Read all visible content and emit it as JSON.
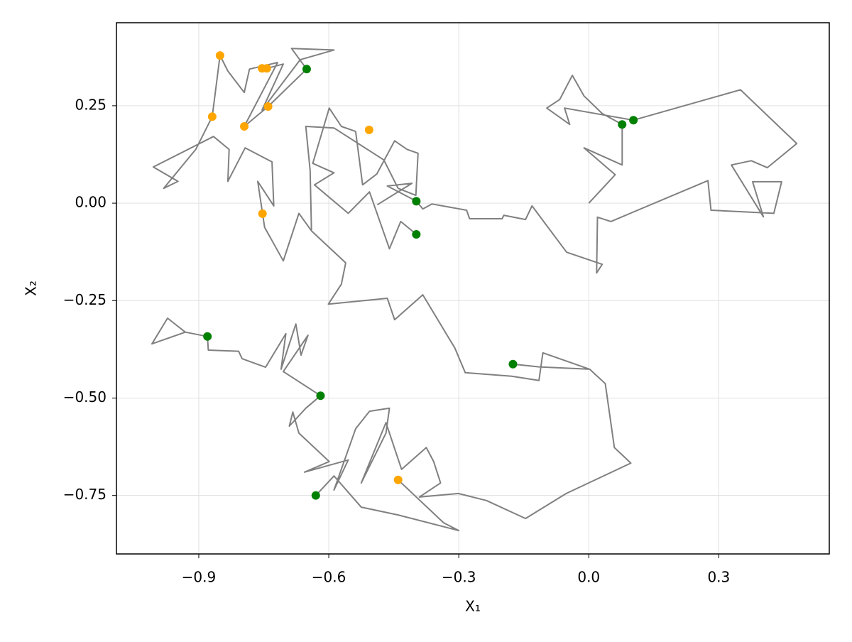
{
  "chart_data": {
    "type": "line",
    "xlabel": "X₁",
    "ylabel": "X₂",
    "xlim": [
      -1.09,
      0.555
    ],
    "ylim": [
      -0.9,
      0.463
    ],
    "xticks": [
      {
        "value": -0.9,
        "label": "−0.9"
      },
      {
        "value": -0.6,
        "label": "−0.6"
      },
      {
        "value": -0.3,
        "label": "−0.3"
      },
      {
        "value": 0,
        "label": "0.0"
      },
      0.3
    ],
    "yticks": [
      {
        "value": -0.75,
        "label": "−0.75"
      },
      {
        "value": -0.5,
        "label": "−0.50"
      },
      {
        "value": -0.25,
        "label": "−0.25"
      },
      {
        "value": 0,
        "label": "0.00"
      },
      0.25
    ],
    "grid": true,
    "series": [
      {
        "type": "line",
        "color": "#808080",
        "x": [
          0,
          0.061,
          -0.011,
          0.077,
          0.077,
          0.031,
          -0.011,
          -0.038,
          -0.067,
          -0.097,
          -0.044,
          -0.056,
          0.103,
          0.35,
          0.48,
          0.412,
          0.375,
          0.329,
          0.403,
          0.378,
          0.445,
          0.427,
          0.282,
          0.275,
          0.051,
          0.02,
          0.018,
          0.031,
          -0.051,
          -0.131,
          -0.146,
          -0.196,
          -0.2,
          -0.275,
          -0.282,
          -0.362,
          -0.383,
          -0.398,
          -0.465,
          -0.408,
          -0.488,
          null,
          -0.398,
          -0.434,
          -0.46,
          -0.506,
          -0.555,
          -0.633,
          -0.588,
          -0.637,
          -0.599,
          -0.571,
          -0.538,
          -0.522,
          -0.489,
          -0.448,
          -0.419,
          -0.394,
          -0.399,
          -0.44,
          -0.473,
          -0.588,
          -0.653,
          -0.643,
          -0.64,
          -0.669,
          -0.705,
          -0.748,
          -0.764,
          -0.727,
          -0.731,
          -0.793,
          -0.833,
          -0.83,
          -0.866,
          -1.005,
          -0.948,
          -0.981,
          -0.907,
          -0.869,
          -0.851,
          -0.833,
          -0.795,
          -0.783,
          -0.718,
          -0.795,
          -0.74,
          -0.651,
          -0.686,
          -0.588,
          -0.666,
          -0.754,
          -0.705,
          -0.743,
          -0.754,
          null,
          -0.64,
          -0.561,
          -0.571,
          -0.601,
          -0.465,
          -0.448,
          -0.383,
          -0.309,
          -0.285,
          -0.178,
          -0.115,
          -0.106,
          0.002,
          -0.115,
          -0.175,
          null,
          0.002,
          0.038,
          0.059,
          0.097,
          -0.052,
          -0.146,
          -0.236,
          -0.301,
          -0.391,
          -0.342,
          -0.358,
          -0.375,
          -0.432,
          -0.468,
          -0.525,
          -0.468,
          -0.46,
          -0.506,
          -0.538,
          -0.588,
          -0.555,
          -0.656,
          -0.599,
          -0.669,
          -0.683,
          -0.691,
          -0.653,
          -0.619,
          -0.705,
          -0.648,
          -0.664,
          -0.676,
          -0.71,
          -0.699,
          -0.746,
          -0.8,
          -0.808,
          -0.878,
          -0.88,
          -0.931,
          -0.972,
          -1.008,
          -0.931,
          null,
          -0.63,
          -0.588,
          -0.525,
          -0.44,
          -0.3,
          -0.335,
          -0.44
        ],
        "values": [
          0,
          0.073,
          0.142,
          0.098,
          0.202,
          0.23,
          0.275,
          0.328,
          0.266,
          0.244,
          0.202,
          0.244,
          0.213,
          0.291,
          0.153,
          0.091,
          0.109,
          0.098,
          -0.035,
          0.055,
          0.055,
          -0.026,
          -0.018,
          0.058,
          -0.047,
          -0.036,
          -0.179,
          -0.157,
          -0.126,
          -0.007,
          -0.042,
          -0.031,
          -0.04,
          -0.04,
          -0.018,
          -0.002,
          -0.015,
          0.005,
          0.044,
          0.051,
          -0.004,
          null,
          -0.08,
          -0.047,
          -0.117,
          0.029,
          -0.026,
          0.047,
          0.078,
          0.102,
          0.244,
          0.197,
          0.184,
          0.047,
          0.075,
          0.16,
          0.138,
          0.128,
          0.02,
          0.038,
          0.111,
          0.193,
          0.197,
          0.084,
          -0.071,
          -0.026,
          -0.148,
          -0.062,
          0.056,
          -0.007,
          0.106,
          0.142,
          0.056,
          0.138,
          0.171,
          0.093,
          0.056,
          0.038,
          0.138,
          0.222,
          0.379,
          0.339,
          0.284,
          0.344,
          0.361,
          0.197,
          0.248,
          0.344,
          0.397,
          0.393,
          0.368,
          0.239,
          0.357,
          0.346,
          0.346,
          null,
          -0.071,
          -0.153,
          -0.208,
          -0.259,
          -0.244,
          -0.299,
          -0.235,
          -0.372,
          -0.435,
          -0.444,
          -0.455,
          -0.384,
          -0.426,
          -0.42,
          -0.413,
          null,
          -0.426,
          -0.463,
          -0.627,
          -0.667,
          -0.745,
          -0.809,
          -0.763,
          -0.745,
          -0.754,
          -0.718,
          -0.663,
          -0.627,
          -0.683,
          -0.563,
          -0.718,
          -0.59,
          -0.526,
          -0.534,
          -0.579,
          -0.736,
          -0.659,
          -0.69,
          -0.663,
          -0.59,
          -0.536,
          -0.572,
          -0.526,
          -0.494,
          -0.432,
          -0.339,
          -0.39,
          -0.31,
          -0.426,
          -0.335,
          -0.421,
          -0.399,
          -0.38,
          -0.377,
          -0.342,
          -0.331,
          -0.295,
          -0.361,
          -0.331,
          null,
          -0.75,
          -0.7,
          -0.78,
          -0.8,
          -0.84,
          -0.82,
          -0.71
        ]
      },
      {
        "type": "scatter",
        "color": "#008000",
        "x": [
          -0.651,
          -0.398,
          -0.398,
          0.077,
          0.103,
          -0.88,
          -0.619,
          -0.175,
          -0.63
        ],
        "values": [
          0.344,
          0.005,
          -0.08,
          0.202,
          0.213,
          -0.342,
          -0.494,
          -0.413,
          -0.75
        ]
      },
      {
        "type": "scatter",
        "color": "#ffa500",
        "x": [
          -0.851,
          -0.869,
          -0.795,
          -0.754,
          -0.743,
          -0.74,
          -0.507,
          -0.753,
          -0.44
        ],
        "values": [
          0.379,
          0.222,
          0.197,
          0.346,
          0.346,
          0.248,
          0.188,
          -0.027,
          -0.71
        ]
      }
    ]
  }
}
